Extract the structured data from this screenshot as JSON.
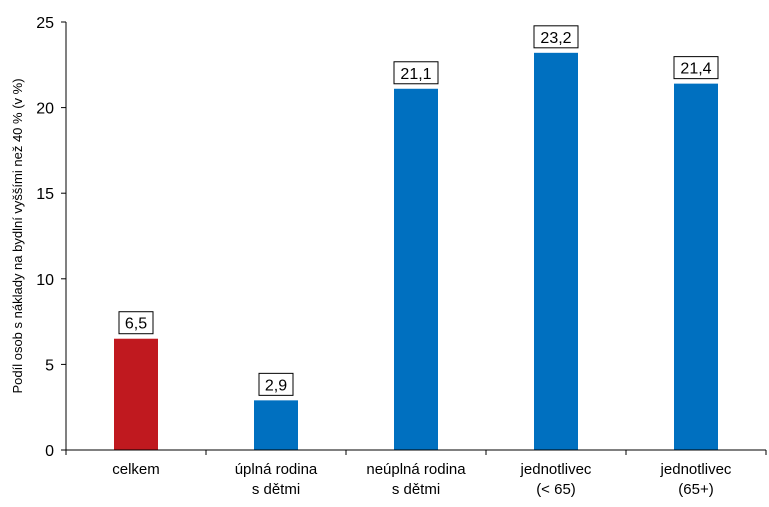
{
  "chart_data": {
    "type": "bar",
    "categories": [
      [
        "celkem"
      ],
      [
        "úplná rodina",
        "s dětmi"
      ],
      [
        "neúplná rodina",
        "s dětmi"
      ],
      [
        "jednotlivec",
        "(< 65)"
      ],
      [
        "jednotlivec",
        "(65+)"
      ]
    ],
    "values": [
      6.5,
      2.9,
      21.1,
      23.2,
      21.4
    ],
    "value_labels": [
      "6,5",
      "2,9",
      "21,1",
      "23,2",
      "21,4"
    ],
    "bar_colors": [
      "#C0191F",
      "#0070C0",
      "#0070C0",
      "#0070C0",
      "#0070C0"
    ],
    "title": "",
    "xlabel": "",
    "ylabel": "Podíl osob s náklady na bydlní vyššími než 40 % (v %)",
    "ylim": [
      0,
      25
    ],
    "yticks": [
      0,
      5,
      10,
      15,
      20,
      25
    ],
    "grid": false,
    "legend": "none"
  }
}
